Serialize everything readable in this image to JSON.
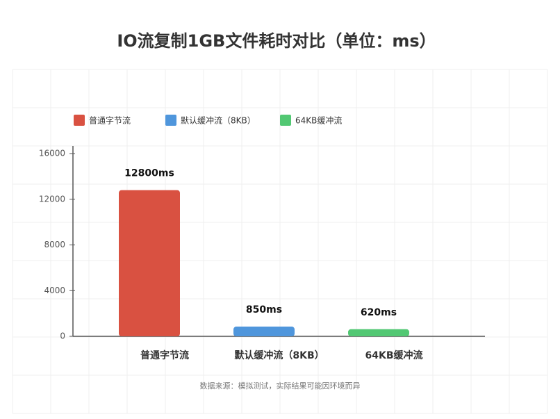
{
  "chart_data": {
    "type": "bar",
    "title": "IO流复制1GB文件耗时对比（单位：ms）",
    "categories": [
      "普通字节流",
      "默认缓冲流（8KB）",
      "64KB缓冲流"
    ],
    "values": [
      12800,
      850,
      620
    ],
    "value_labels": [
      "12800ms",
      "850ms",
      "620ms"
    ],
    "legend": [
      {
        "name": "普通字节流",
        "color": "#d95141"
      },
      {
        "name": "默认缓冲流（8KB）",
        "color": "#4f96dc"
      },
      {
        "name": "64KB缓冲流",
        "color": "#52c873"
      }
    ],
    "ylim": [
      0,
      16000
    ],
    "yticks": [
      0,
      4000,
      8000,
      12000,
      16000
    ],
    "note": "数据来源：模拟测试，实际结果可能因环境而异"
  }
}
